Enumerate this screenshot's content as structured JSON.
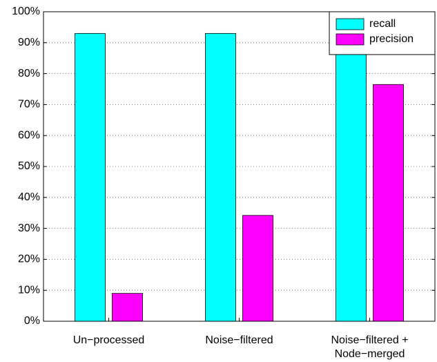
{
  "chart_data": {
    "type": "bar",
    "categories": [
      "Un−processed",
      "Noise−filtered",
      "Noise−filtered +\nNode−merged"
    ],
    "series": [
      {
        "name": "recall",
        "color": "#00ffff",
        "values": [
          93,
          93,
          93
        ]
      },
      {
        "name": "precision",
        "color": "#ff00ff",
        "values": [
          9,
          34.2,
          76.5
        ]
      }
    ],
    "ylim": [
      0,
      100
    ],
    "yticks": [
      {
        "value": 0,
        "label": "0%"
      },
      {
        "value": 10,
        "label": "10%"
      },
      {
        "value": 20,
        "label": "20%"
      },
      {
        "value": 30,
        "label": "30%"
      },
      {
        "value": 40,
        "label": "40%"
      },
      {
        "value": 50,
        "label": "50%"
      },
      {
        "value": 60,
        "label": "60%"
      },
      {
        "value": 70,
        "label": "70%"
      },
      {
        "value": 80,
        "label": "80%"
      },
      {
        "value": 90,
        "label": "90%"
      },
      {
        "value": 100,
        "label": "100%"
      }
    ],
    "grid": true,
    "legend": "upper right"
  }
}
